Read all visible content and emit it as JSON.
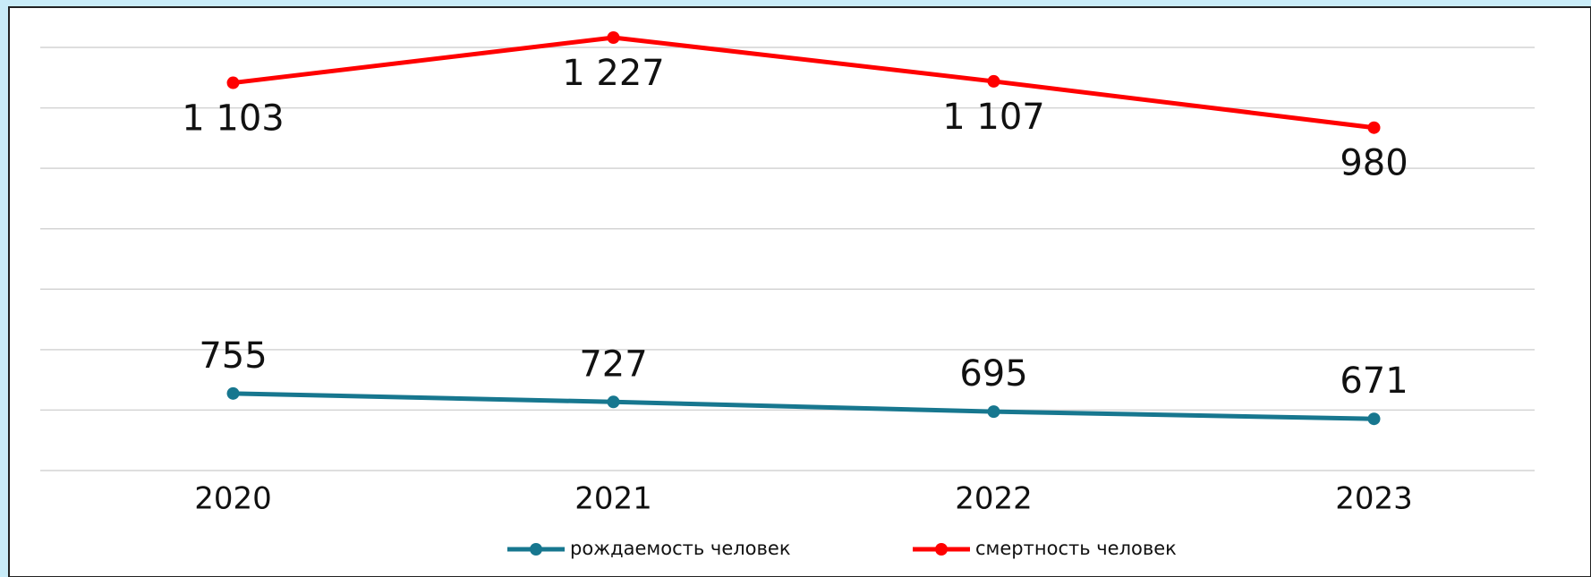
{
  "chart_data": {
    "type": "line",
    "categories": [
      "2020",
      "2021",
      "2022",
      "2023"
    ],
    "series": [
      {
        "name": "рождаемость человек",
        "color": "#17778f",
        "values": [
          755,
          727,
          695,
          671
        ]
      },
      {
        "name": "смертность человек",
        "color": "#ff0000",
        "values": [
          1103,
          1227,
          1107,
          980
        ],
        "axis": "y2"
      }
    ],
    "ylim": [
      500,
      1900
    ],
    "yticks": [
      500,
      700,
      900,
      1100,
      1300,
      1500,
      1700,
      1900
    ],
    "y2lim": [
      40,
      1200
    ],
    "grid": true,
    "legend": "bottom"
  }
}
